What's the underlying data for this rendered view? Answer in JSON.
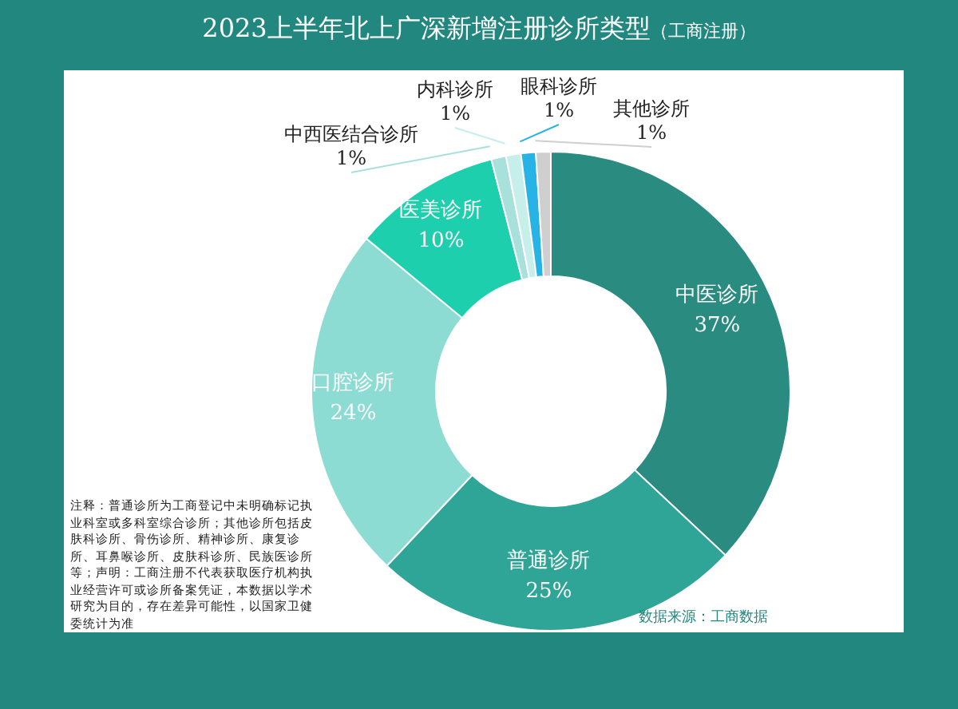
{
  "chart_data": {
    "type": "donut",
    "title": "2023上半年北上广深新增注册诊所类型",
    "subtitle": "（工商注册）",
    "categories": [
      "中医诊所",
      "普通诊所",
      "口腔诊所",
      "医美诊所",
      "中西医结合诊所",
      "内科诊所",
      "眼科诊所",
      "其他诊所"
    ],
    "values": [
      37,
      25,
      24,
      10,
      1,
      1,
      1,
      1
    ],
    "value_labels": [
      "37%",
      "25%",
      "24%",
      "10%",
      "1%",
      "1%",
      "1%",
      "1%"
    ],
    "colors": [
      "#2a8c80",
      "#2ea596",
      "#8cdcd4",
      "#1ecfae",
      "#a8e0dc",
      "#c6eeeb",
      "#27b3e6",
      "#cfcfcf"
    ],
    "annotations": [
      "注释：普通诊所为工商登记中未明确标记执业科室或多科室综合诊所；其他诊所包括皮肤科诊所、骨伤诊所、精神诊所、康复诊所、耳鼻喉诊所、皮肤科诊所、民族医诊所等；声明：工商注册不代表获取医疗机构执业经营许可或诊所备案凭证，本数据以学术研究为目的，存在差异可能性，以国家卫健委统计为准",
      "数据来源：工商数据"
    ]
  }
}
